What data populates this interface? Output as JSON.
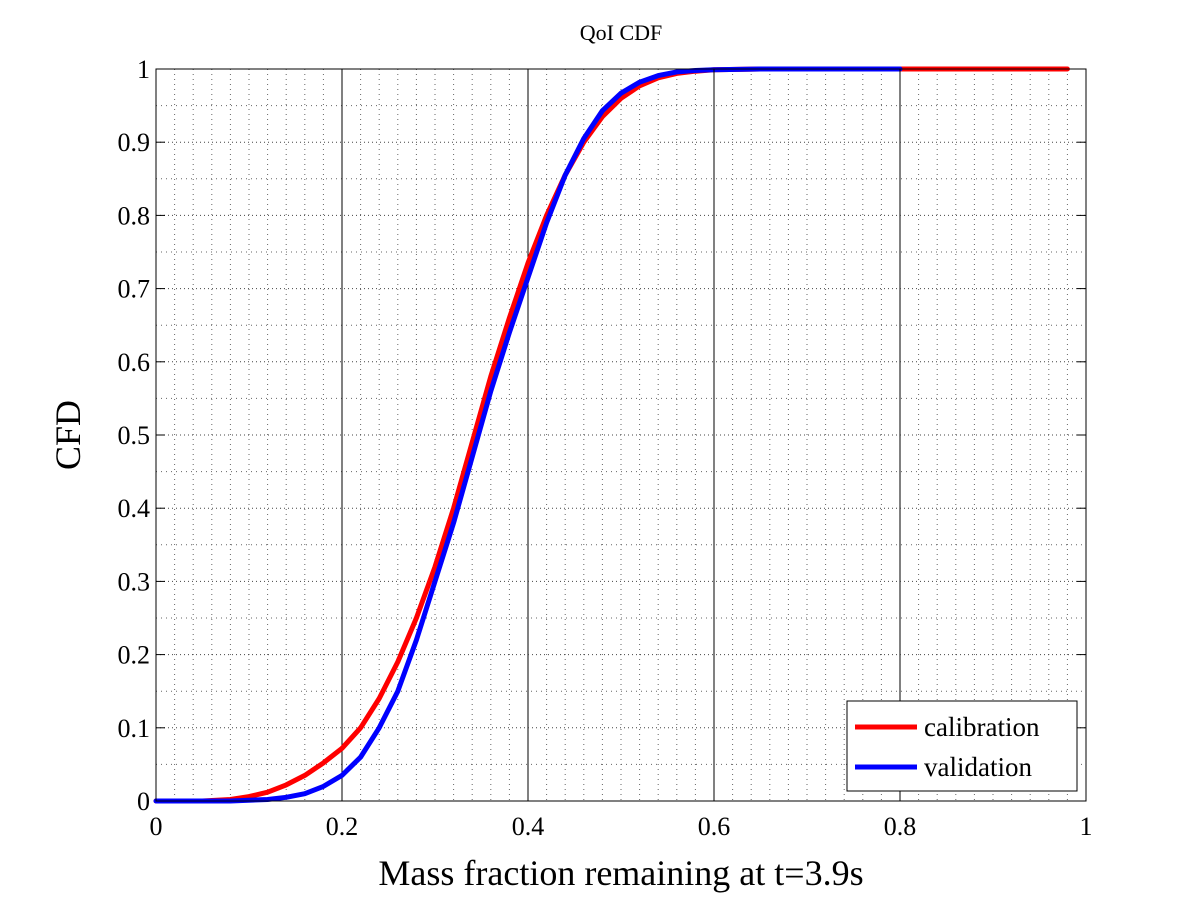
{
  "chart_data": {
    "type": "line",
    "title": "QoI CDF",
    "xlabel": "Mass fraction remaining at t=3.9s",
    "ylabel": "CFD",
    "xlim": [
      0,
      1
    ],
    "ylim": [
      0,
      1
    ],
    "xticks": [
      0,
      0.2,
      0.4,
      0.6,
      0.8,
      1
    ],
    "xtick_labels": [
      "0",
      "0.2",
      "0.4",
      "0.6",
      "0.8",
      "1"
    ],
    "yticks": [
      0,
      0.1,
      0.2,
      0.3,
      0.4,
      0.5,
      0.6,
      0.7,
      0.8,
      0.9,
      1
    ],
    "ytick_labels": [
      "0",
      "0.1",
      "0.2",
      "0.3",
      "0.4",
      "0.5",
      "0.6",
      "0.7",
      "0.8",
      "0.9",
      "1"
    ],
    "grid": true,
    "legend_position": "bottom-right",
    "series": [
      {
        "name": "calibration",
        "color": "#ff0000",
        "x": [
          0,
          0.05,
          0.08,
          0.1,
          0.12,
          0.14,
          0.16,
          0.18,
          0.2,
          0.22,
          0.24,
          0.26,
          0.28,
          0.3,
          0.32,
          0.34,
          0.36,
          0.38,
          0.4,
          0.42,
          0.44,
          0.46,
          0.48,
          0.5,
          0.52,
          0.54,
          0.56,
          0.58,
          0.6,
          0.65,
          0.7,
          0.8,
          0.9,
          0.98
        ],
        "y": [
          0,
          0,
          0.002,
          0.006,
          0.012,
          0.022,
          0.035,
          0.052,
          0.072,
          0.1,
          0.14,
          0.19,
          0.25,
          0.32,
          0.4,
          0.49,
          0.58,
          0.66,
          0.735,
          0.8,
          0.855,
          0.9,
          0.935,
          0.96,
          0.977,
          0.988,
          0.994,
          0.997,
          0.999,
          1,
          1,
          1,
          1,
          1
        ]
      },
      {
        "name": "validation",
        "color": "#0000ff",
        "x": [
          0,
          0.08,
          0.12,
          0.14,
          0.16,
          0.18,
          0.2,
          0.22,
          0.24,
          0.26,
          0.28,
          0.3,
          0.32,
          0.34,
          0.36,
          0.38,
          0.4,
          0.42,
          0.44,
          0.46,
          0.48,
          0.5,
          0.52,
          0.54,
          0.56,
          0.58,
          0.6,
          0.65,
          0.7,
          0.75,
          0.8
        ],
        "y": [
          0,
          0,
          0.002,
          0.005,
          0.01,
          0.02,
          0.035,
          0.06,
          0.1,
          0.15,
          0.22,
          0.3,
          0.38,
          0.47,
          0.56,
          0.64,
          0.715,
          0.79,
          0.855,
          0.905,
          0.943,
          0.967,
          0.982,
          0.991,
          0.996,
          0.998,
          0.999,
          1,
          1,
          1,
          1
        ]
      }
    ]
  }
}
